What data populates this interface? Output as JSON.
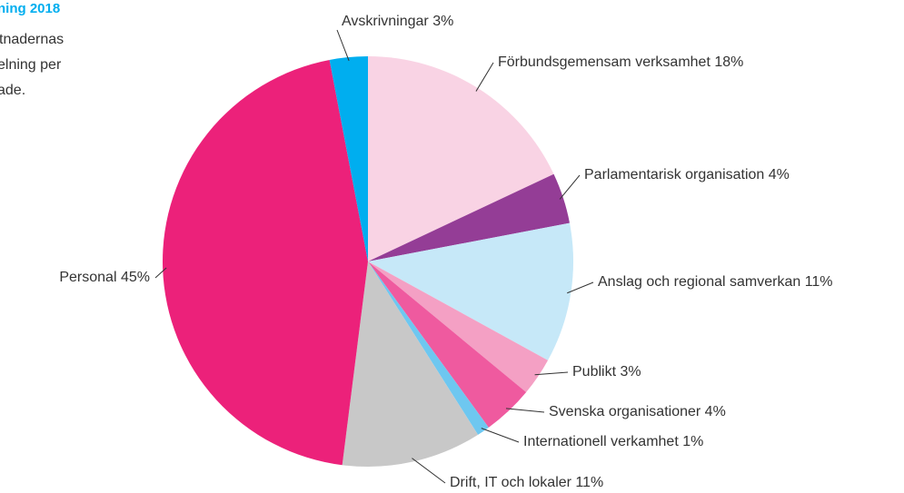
{
  "chart_data": {
    "type": "pie",
    "title": "ning 2018",
    "subtitle": [
      "tnadernas",
      "elning per",
      "ade."
    ],
    "categories": [
      "Förbundsgemensam verksamhet",
      "Parlamentarisk organisation",
      "Anslag och regional samverkan",
      "Publikt",
      "Svenska organisationer",
      "Internationell verkamhet",
      "Drift, IT och lokaler",
      "Personal",
      "Avskrivningar"
    ],
    "values": [
      18,
      4,
      11,
      3,
      4,
      1,
      11,
      45,
      3
    ],
    "value_labels": [
      "18%",
      "4%",
      "11%",
      "3%",
      "4%",
      "1%",
      "11%",
      "45%",
      "3%"
    ],
    "colors": [
      "#f9d3e4",
      "#943d96",
      "#c6e8f8",
      "#f4a0c4",
      "#ef5a9f",
      "#6ec7f0",
      "#c8c8c8",
      "#ec217a",
      "#00aeef"
    ]
  }
}
